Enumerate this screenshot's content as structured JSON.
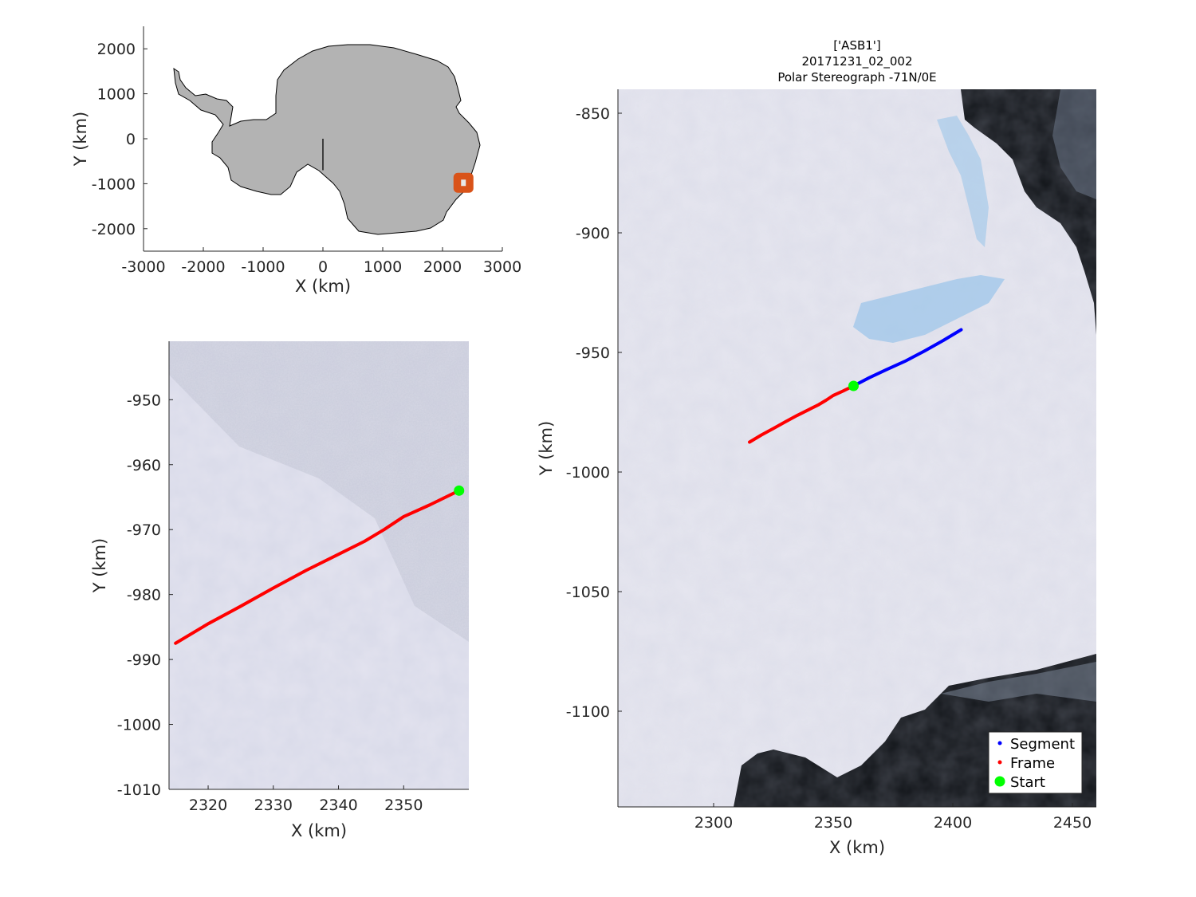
{
  "overview": {
    "xlabel": "X (km)",
    "ylabel": "Y (km)",
    "xlim": [
      -3000,
      3000
    ],
    "ylim": [
      -2500,
      2500
    ],
    "xticks": [
      "-3000",
      "-2000",
      "-1000",
      "0",
      "1000",
      "2000",
      "3000"
    ],
    "yticks": [
      "2000",
      "1000",
      "0",
      "-1000",
      "-2000"
    ],
    "land_color": "#b3b3b3",
    "marker_color": "#d95319",
    "marker_center_km": [
      2350,
      -980
    ],
    "meridian_line_km": [
      [
        0,
        0
      ],
      [
        0,
        -700
      ]
    ]
  },
  "zoom": {
    "xlabel": "X (km)",
    "ylabel": "Y (km)",
    "xlim": [
      2314,
      2360
    ],
    "ylim": [
      -1010,
      -941
    ],
    "xticks": [
      "2320",
      "2330",
      "2340",
      "2350"
    ],
    "yticks": [
      "-950",
      "-960",
      "-970",
      "-980",
      "-990",
      "-1000",
      "-1010"
    ]
  },
  "main": {
    "title_lines": [
      "['ASB1']",
      "20171231_02_002",
      "Polar Stereograph -71N/0E"
    ],
    "xlabel": "X (km)",
    "ylabel": "Y (km)",
    "xlim": [
      2260,
      2460
    ],
    "ylim": [
      -1140,
      -840
    ],
    "xticks": [
      "2300",
      "2350",
      "2400",
      "2450"
    ],
    "yticks": [
      "-850",
      "-900",
      "-950",
      "-1000",
      "-1050",
      "-1100"
    ],
    "legend": {
      "position": "bottom-right",
      "items": [
        {
          "label": "Segment",
          "color": "#0000ff"
        },
        {
          "label": "Frame",
          "color": "#ff0000"
        },
        {
          "label": "Start",
          "color": "#00ff00"
        }
      ]
    }
  },
  "chart_data": {
    "type": "line",
    "series": [
      {
        "name": "Segment",
        "color": "#0000ff",
        "x": [
          2358.5,
          2365,
          2372,
          2380,
          2388,
          2396,
          2403.5
        ],
        "y": [
          -964,
          -960.6,
          -957.3,
          -953.7,
          -949.5,
          -945,
          -940.5
        ]
      },
      {
        "name": "Frame",
        "color": "#ff0000",
        "x": [
          2315,
          2320,
          2325,
          2330,
          2335,
          2340,
          2344,
          2347,
          2350,
          2354,
          2358.5
        ],
        "y": [
          -987.5,
          -984.5,
          -981.8,
          -979,
          -976.3,
          -973.8,
          -971.8,
          -970,
          -968,
          -966.2,
          -964
        ]
      },
      {
        "name": "Start",
        "color": "#00ff00",
        "x": [
          2358.5
        ],
        "y": [
          -964
        ]
      }
    ]
  }
}
